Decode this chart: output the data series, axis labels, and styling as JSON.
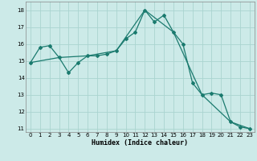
{
  "xlabel": "Humidex (Indice chaleur)",
  "ylabel": "",
  "bg_color": "#cceae8",
  "grid_color": "#aad4d0",
  "line_color": "#1a7a6e",
  "xlim": [
    -0.5,
    23.5
  ],
  "ylim": [
    10.8,
    18.5
  ],
  "yticks": [
    11,
    12,
    13,
    14,
    15,
    16,
    17,
    18
  ],
  "xticks": [
    0,
    1,
    2,
    3,
    4,
    5,
    6,
    7,
    8,
    9,
    10,
    11,
    12,
    13,
    14,
    15,
    16,
    17,
    18,
    19,
    20,
    21,
    22,
    23
  ],
  "series1_x": [
    0,
    1,
    2,
    3,
    4,
    5,
    6,
    7,
    8,
    9,
    10,
    11,
    12,
    13,
    14,
    15,
    16,
    17,
    18,
    19,
    20,
    21,
    22,
    23
  ],
  "series1_y": [
    14.9,
    15.8,
    15.9,
    15.2,
    14.3,
    14.9,
    15.3,
    15.3,
    15.4,
    15.6,
    16.3,
    16.7,
    18.0,
    17.3,
    17.7,
    16.7,
    16.0,
    13.7,
    13.0,
    13.1,
    13.0,
    11.4,
    11.1,
    11.0
  ],
  "series2_x": [
    0,
    3,
    6,
    9,
    12,
    15,
    18,
    21,
    23
  ],
  "series2_y": [
    14.9,
    15.2,
    15.3,
    15.6,
    18.0,
    16.7,
    13.0,
    11.4,
    11.0
  ]
}
